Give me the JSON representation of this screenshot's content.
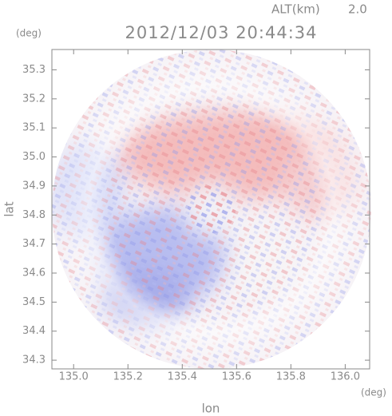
{
  "chart_data": {
    "type": "image",
    "altitude_label": "ALT(km)",
    "altitude": "2.0",
    "title": "2012/12/03 20:44:34",
    "x_label": "lon",
    "y_label": "lat",
    "x_unit": "(deg)",
    "y_unit": "(deg)",
    "xlim": [
      134.92,
      136.09
    ],
    "xticks": [
      {
        "value": 135.0,
        "label": "135.0"
      },
      {
        "value": 135.2,
        "label": "135.2"
      },
      {
        "value": 135.4,
        "label": "135.4"
      },
      {
        "value": 135.6,
        "label": "135.6"
      },
      {
        "value": 135.8,
        "label": "135.8"
      },
      {
        "value": 136.0,
        "label": "136.0"
      }
    ],
    "ylim": [
      34.27,
      35.37
    ],
    "yticks": [
      34.3,
      34.4,
      34.5,
      34.6,
      34.7,
      34.8,
      34.9,
      {
        "value": 35.0,
        "label": "35.0"
      },
      35.1,
      35.2,
      35.3
    ]
  }
}
